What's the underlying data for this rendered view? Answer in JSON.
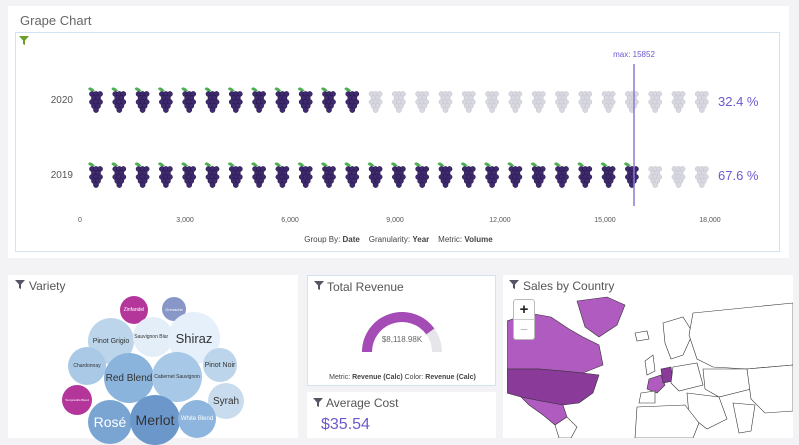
{
  "header": {
    "title": "Grape Chart"
  },
  "grape_chart": {
    "max_label": "max: 15852",
    "rows": [
      {
        "year": "2020",
        "pct": "32.4 %"
      },
      {
        "year": "2019",
        "pct": "67.6 %"
      }
    ],
    "ticks": [
      "0",
      "3,000",
      "6,000",
      "9,000",
      "12,000",
      "15,000",
      "18,000"
    ],
    "footer": {
      "group_by_label": "Group By:",
      "group_by_value": "Date",
      "granularity_label": "Granularity:",
      "granularity_value": "Year",
      "metric_label": "Metric:",
      "metric_value": "Volume"
    }
  },
  "variety": {
    "title": "Variety",
    "bubbles": [
      {
        "label": "Zinfandel"
      },
      {
        "label": "Grenache"
      },
      {
        "label": "Pinot Grigio"
      },
      {
        "label": "Sauvignon Blanc"
      },
      {
        "label": "Shiraz"
      },
      {
        "label": "Chardonnay"
      },
      {
        "label": "Red Blend"
      },
      {
        "label": "Cabernet Sauvignon"
      },
      {
        "label": "Pinot Noir"
      },
      {
        "label": "Tempranillo Blend"
      },
      {
        "label": "Syrah"
      },
      {
        "label": "Rosé"
      },
      {
        "label": "Merlot"
      },
      {
        "label": "White Blend"
      }
    ]
  },
  "total_revenue": {
    "title": "Total Revenue",
    "value": "$8,118.98K",
    "footer": {
      "metric_label": "Metric:",
      "metric_value": "Revenue (Calc)",
      "color_label": "Color:",
      "color_value": "Revenue (Calc)"
    }
  },
  "average_cost": {
    "title": "Average Cost",
    "value": "$35.54"
  },
  "sales_by_country": {
    "title": "Sales by Country",
    "zoom_in": "+",
    "zoom_out": "−"
  },
  "colors": {
    "accent": "#6a5acd",
    "grape_dark": "#3e2a6e",
    "grape_light": "#d8d8e0",
    "leaf": "#4caf50",
    "map_highlight": "#b05bbf"
  }
}
